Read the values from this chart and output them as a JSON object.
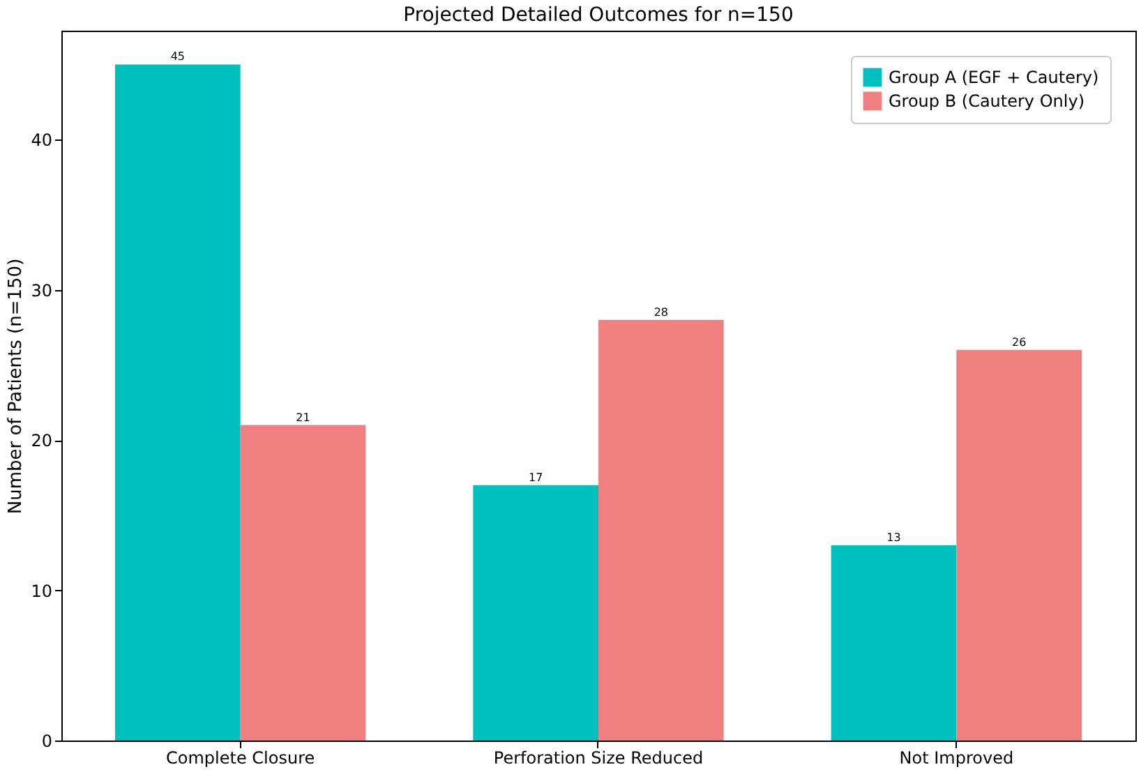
{
  "chart_data": {
    "type": "bar",
    "title": "Projected Detailed Outcomes for n=150",
    "ylabel": "Number of Patients (n=150)",
    "categories": [
      "Complete Closure",
      "Perforation Size Reduced",
      "Not Improved"
    ],
    "series": [
      {
        "name": "Group A (EGF + Cautery)",
        "color": "#00bfbf",
        "values": [
          45,
          17,
          13
        ]
      },
      {
        "name": "Group B (Cautery Only)",
        "color": "#f08080",
        "values": [
          21,
          28,
          26
        ]
      }
    ],
    "ylim": [
      0,
      47.25
    ],
    "yticks": [
      0,
      10,
      20,
      30,
      40
    ],
    "data_labels": true,
    "legend": "top right",
    "grid": false
  }
}
